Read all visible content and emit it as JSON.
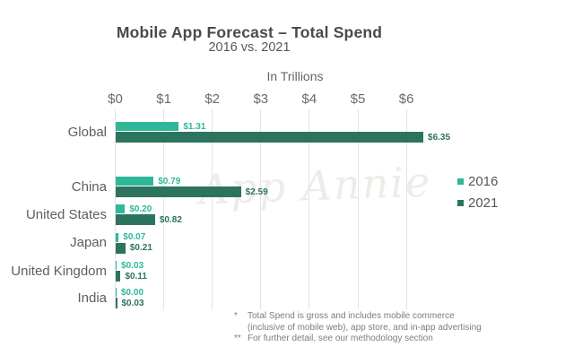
{
  "chart_data": {
    "type": "bar",
    "orientation": "horizontal",
    "title": "Mobile App Forecast – Total Spend",
    "subtitle": "2016 vs. 2021",
    "units_label": "In Trillions",
    "categories": [
      "Global",
      "China",
      "United States",
      "Japan",
      "United Kingdom",
      "India"
    ],
    "series": [
      {
        "name": "2016",
        "color": "#2fb799",
        "values": [
          1.31,
          0.79,
          0.2,
          0.07,
          0.03,
          0.0
        ],
        "labels": [
          "$1.31",
          "$0.79",
          "$0.20",
          "$0.07",
          "$0.03",
          "$0.00"
        ]
      },
      {
        "name": "2021",
        "color": "#2d745f",
        "values": [
          6.35,
          2.59,
          0.82,
          0.21,
          0.11,
          0.03
        ],
        "labels": [
          "$6.35",
          "$2.59",
          "$0.82",
          "$0.21",
          "$0.11",
          "$0.03"
        ]
      }
    ],
    "x_ticks": [
      "$0",
      "$1",
      "$2",
      "$3",
      "$4",
      "$5",
      "$6"
    ],
    "xlim": [
      0,
      6.5
    ],
    "grid": true,
    "legend_position": "right"
  },
  "watermark": "App Annie",
  "footnotes": [
    {
      "marker": "*",
      "lines": [
        "Total Spend is gross and includes mobile commerce",
        "(inclusive of mobile web), app store, and in-app advertising"
      ]
    },
    {
      "marker": "**",
      "lines": [
        "For further detail, see our methodology section"
      ]
    }
  ]
}
